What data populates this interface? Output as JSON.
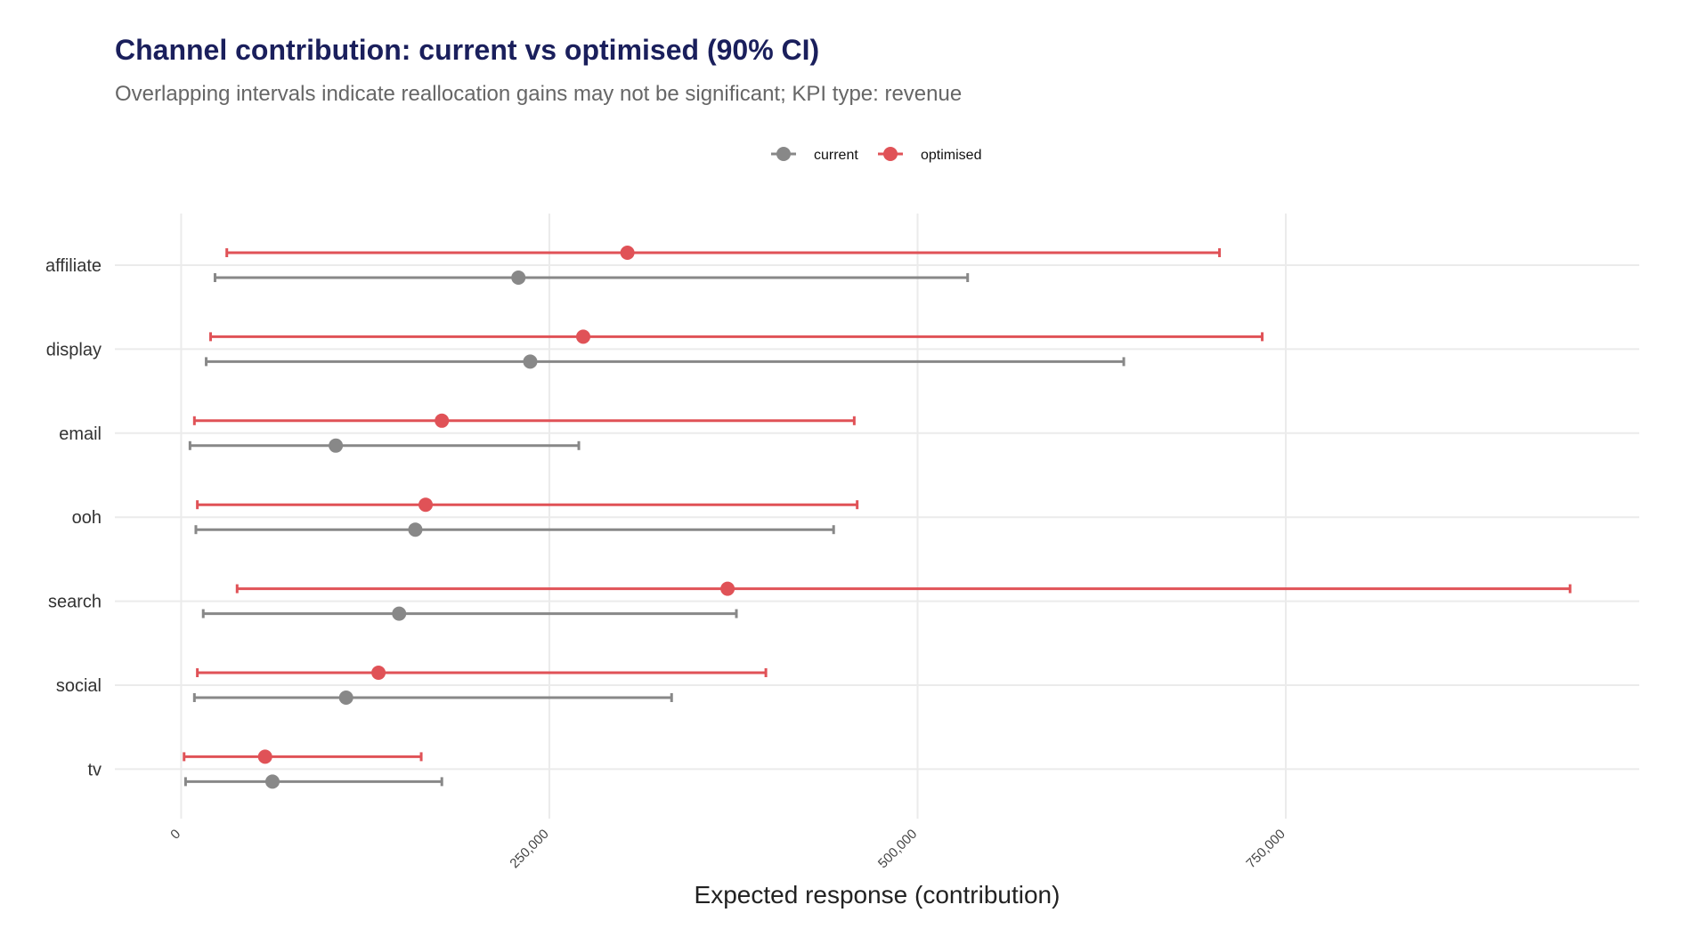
{
  "chart_data": {
    "type": "dot-interval",
    "title": "Channel contribution: current vs optimised (90% CI)",
    "subtitle": "Overlapping intervals indicate reallocation gains may not be significant; KPI type: revenue",
    "xlabel": "Expected response (contribution)",
    "ylabel": "",
    "xlim": [
      -45000,
      990000
    ],
    "x_ticks": [
      0,
      250000,
      500000,
      750000
    ],
    "x_tick_labels": [
      "0",
      "250,000",
      "500,000",
      "750,000"
    ],
    "categories": [
      "affiliate",
      "display",
      "email",
      "ooh",
      "search",
      "social",
      "tv"
    ],
    "legend_position": "top",
    "grid": true,
    "series": [
      {
        "name": "current",
        "color": "#888888",
        "points": [
          {
            "category": "affiliate",
            "value": 229000,
            "low": 23000,
            "high": 534000
          },
          {
            "category": "display",
            "value": 237000,
            "low": 17000,
            "high": 640000
          },
          {
            "category": "email",
            "value": 105000,
            "low": 6000,
            "high": 270000
          },
          {
            "category": "ooh",
            "value": 159000,
            "low": 10000,
            "high": 443000
          },
          {
            "category": "search",
            "value": 148000,
            "low": 15000,
            "high": 377000
          },
          {
            "category": "social",
            "value": 112000,
            "low": 9000,
            "high": 333000
          },
          {
            "category": "tv",
            "value": 62000,
            "low": 3000,
            "high": 177000
          }
        ]
      },
      {
        "name": "optimised",
        "color": "#e05257",
        "points": [
          {
            "category": "affiliate",
            "value": 303000,
            "low": 31000,
            "high": 705000
          },
          {
            "category": "display",
            "value": 273000,
            "low": 20000,
            "high": 734000
          },
          {
            "category": "email",
            "value": 177000,
            "low": 9000,
            "high": 457000
          },
          {
            "category": "ooh",
            "value": 166000,
            "low": 11000,
            "high": 459000
          },
          {
            "category": "search",
            "value": 371000,
            "low": 38000,
            "high": 943000
          },
          {
            "category": "social",
            "value": 134000,
            "low": 11000,
            "high": 397000
          },
          {
            "category": "tv",
            "value": 57000,
            "low": 2000,
            "high": 163000
          }
        ]
      }
    ]
  }
}
